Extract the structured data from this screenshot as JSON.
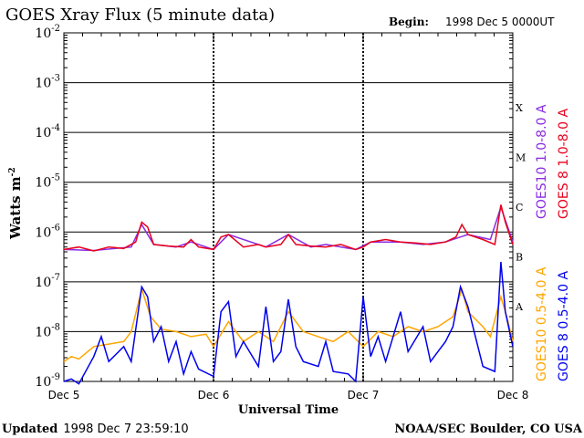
{
  "chart_data": {
    "type": "line",
    "title": "GOES Xray Flux (5 minute data)",
    "begin_label": "Begin:",
    "begin_value": "1998 Dec 5 0000UT",
    "ylabel": "Watts m",
    "ylabel_sup": "-2",
    "xlabel": "Universal Time",
    "yscale": "log",
    "ylim": [
      1e-09,
      0.01
    ],
    "y_ticks": [
      {
        "exp": -9,
        "base": "10",
        "sup": "-9"
      },
      {
        "exp": -8,
        "base": "10",
        "sup": "-8"
      },
      {
        "exp": -7,
        "base": "10",
        "sup": "-7"
      },
      {
        "exp": -6,
        "base": "10",
        "sup": "-6"
      },
      {
        "exp": -5,
        "base": "10",
        "sup": "-5"
      },
      {
        "exp": -4,
        "base": "10",
        "sup": "-4"
      },
      {
        "exp": -3,
        "base": "10",
        "sup": "-3"
      },
      {
        "exp": -2,
        "base": "10",
        "sup": "-2"
      }
    ],
    "x_tick_labels": [
      "Dec 5",
      "Dec 6",
      "Dec 7",
      "Dec 8"
    ],
    "xlim_days": [
      0,
      3
    ],
    "flare_classes": [
      {
        "label": "A",
        "exp": -7.5
      },
      {
        "label": "B",
        "exp": -6.5
      },
      {
        "label": "C",
        "exp": -5.5
      },
      {
        "label": "M",
        "exp": -4.5
      },
      {
        "label": "X",
        "exp": -3.5
      }
    ],
    "grid": true,
    "legend_placement": "right-vertical",
    "series": [
      {
        "name": "GOES10 1.0-8.0 A",
        "color": "#8a2be2",
        "points": [
          [
            0,
            -6.35
          ],
          [
            0.2,
            -6.37
          ],
          [
            0.45,
            -6.3
          ],
          [
            0.52,
            -5.85
          ],
          [
            0.6,
            -6.25
          ],
          [
            0.75,
            -6.3
          ],
          [
            0.85,
            -6.2
          ],
          [
            1.0,
            -6.35
          ],
          [
            1.1,
            -6.05
          ],
          [
            1.35,
            -6.3
          ],
          [
            1.5,
            -6.05
          ],
          [
            1.65,
            -6.3
          ],
          [
            1.75,
            -6.25
          ],
          [
            1.95,
            -6.35
          ],
          [
            2.05,
            -6.2
          ],
          [
            2.25,
            -6.2
          ],
          [
            2.4,
            -6.25
          ],
          [
            2.55,
            -6.2
          ],
          [
            2.7,
            -6.05
          ],
          [
            2.85,
            -6.15
          ],
          [
            2.92,
            -5.5
          ],
          [
            3.0,
            -6.2
          ]
        ]
      },
      {
        "name": "GOES 8 1.0-8.0 A",
        "color": "#e8001c",
        "points": [
          [
            0,
            -6.35
          ],
          [
            0.1,
            -6.3
          ],
          [
            0.2,
            -6.38
          ],
          [
            0.3,
            -6.3
          ],
          [
            0.4,
            -6.33
          ],
          [
            0.48,
            -6.2
          ],
          [
            0.52,
            -5.8
          ],
          [
            0.56,
            -5.9
          ],
          [
            0.6,
            -6.25
          ],
          [
            0.7,
            -6.28
          ],
          [
            0.8,
            -6.3
          ],
          [
            0.85,
            -6.15
          ],
          [
            0.9,
            -6.3
          ],
          [
            1.0,
            -6.35
          ],
          [
            1.05,
            -6.1
          ],
          [
            1.1,
            -6.05
          ],
          [
            1.2,
            -6.3
          ],
          [
            1.3,
            -6.25
          ],
          [
            1.35,
            -6.3
          ],
          [
            1.45,
            -6.25
          ],
          [
            1.5,
            -6.05
          ],
          [
            1.55,
            -6.25
          ],
          [
            1.65,
            -6.28
          ],
          [
            1.75,
            -6.3
          ],
          [
            1.85,
            -6.25
          ],
          [
            1.95,
            -6.35
          ],
          [
            2.0,
            -6.3
          ],
          [
            2.05,
            -6.2
          ],
          [
            2.15,
            -6.15
          ],
          [
            2.25,
            -6.2
          ],
          [
            2.35,
            -6.22
          ],
          [
            2.45,
            -6.25
          ],
          [
            2.55,
            -6.2
          ],
          [
            2.62,
            -6.1
          ],
          [
            2.66,
            -5.85
          ],
          [
            2.7,
            -6.05
          ],
          [
            2.8,
            -6.15
          ],
          [
            2.88,
            -6.25
          ],
          [
            2.92,
            -5.45
          ],
          [
            2.95,
            -5.8
          ],
          [
            3.0,
            -6.25
          ]
        ]
      },
      {
        "name": "GOES10 0.5-4.0 A",
        "color": "#ffa500",
        "points": [
          [
            0,
            -8.6
          ],
          [
            0.05,
            -8.5
          ],
          [
            0.1,
            -8.55
          ],
          [
            0.2,
            -8.3
          ],
          [
            0.3,
            -8.25
          ],
          [
            0.4,
            -8.2
          ],
          [
            0.45,
            -8.0
          ],
          [
            0.52,
            -7.15
          ],
          [
            0.58,
            -7.7
          ],
          [
            0.65,
            -7.95
          ],
          [
            0.75,
            -8.0
          ],
          [
            0.85,
            -8.1
          ],
          [
            0.95,
            -8.05
          ],
          [
            1.0,
            -8.3
          ],
          [
            1.1,
            -7.8
          ],
          [
            1.2,
            -8.2
          ],
          [
            1.3,
            -8.0
          ],
          [
            1.4,
            -8.2
          ],
          [
            1.5,
            -7.6
          ],
          [
            1.6,
            -8.0
          ],
          [
            1.7,
            -8.1
          ],
          [
            1.8,
            -8.2
          ],
          [
            1.9,
            -8.0
          ],
          [
            2.0,
            -8.3
          ],
          [
            2.1,
            -8.0
          ],
          [
            2.2,
            -8.1
          ],
          [
            2.3,
            -7.9
          ],
          [
            2.4,
            -8.0
          ],
          [
            2.5,
            -7.9
          ],
          [
            2.6,
            -7.7
          ],
          [
            2.66,
            -7.15
          ],
          [
            2.7,
            -7.6
          ],
          [
            2.8,
            -7.9
          ],
          [
            2.85,
            -8.1
          ],
          [
            2.92,
            -7.3
          ],
          [
            2.96,
            -7.7
          ],
          [
            3.0,
            -8.2
          ]
        ]
      },
      {
        "name": "GOES 8 0.5-4.0 A",
        "color": "#0000ee",
        "points": [
          [
            0,
            -9.0
          ],
          [
            0.05,
            -8.95
          ],
          [
            0.1,
            -9.05
          ],
          [
            0.2,
            -8.5
          ],
          [
            0.25,
            -8.1
          ],
          [
            0.3,
            -8.6
          ],
          [
            0.4,
            -8.3
          ],
          [
            0.45,
            -8.6
          ],
          [
            0.52,
            -7.1
          ],
          [
            0.56,
            -7.3
          ],
          [
            0.6,
            -8.2
          ],
          [
            0.65,
            -7.9
          ],
          [
            0.7,
            -8.6
          ],
          [
            0.75,
            -8.2
          ],
          [
            0.8,
            -8.85
          ],
          [
            0.85,
            -8.4
          ],
          [
            0.9,
            -8.75
          ],
          [
            1.0,
            -8.9
          ],
          [
            1.05,
            -7.6
          ],
          [
            1.1,
            -7.4
          ],
          [
            1.15,
            -8.5
          ],
          [
            1.2,
            -8.2
          ],
          [
            1.3,
            -8.7
          ],
          [
            1.35,
            -7.5
          ],
          [
            1.4,
            -8.6
          ],
          [
            1.45,
            -8.4
          ],
          [
            1.5,
            -7.35
          ],
          [
            1.55,
            -8.3
          ],
          [
            1.6,
            -8.6
          ],
          [
            1.7,
            -8.7
          ],
          [
            1.75,
            -8.2
          ],
          [
            1.8,
            -8.8
          ],
          [
            1.9,
            -8.85
          ],
          [
            1.95,
            -9.0
          ],
          [
            2.0,
            -7.3
          ],
          [
            2.05,
            -8.5
          ],
          [
            2.1,
            -8.1
          ],
          [
            2.15,
            -8.6
          ],
          [
            2.25,
            -7.6
          ],
          [
            2.3,
            -8.4
          ],
          [
            2.4,
            -7.9
          ],
          [
            2.45,
            -8.6
          ],
          [
            2.55,
            -8.2
          ],
          [
            2.6,
            -7.9
          ],
          [
            2.65,
            -7.1
          ],
          [
            2.7,
            -7.5
          ],
          [
            2.75,
            -8.1
          ],
          [
            2.8,
            -8.7
          ],
          [
            2.88,
            -8.8
          ],
          [
            2.92,
            -6.6
          ],
          [
            2.95,
            -7.6
          ],
          [
            3.0,
            -8.3
          ]
        ]
      }
    ]
  },
  "footer": {
    "updated_label": "Updated",
    "updated_value": "1998 Dec  7 23:59:10",
    "credit": "NOAA/SEC Boulder, CO USA"
  }
}
